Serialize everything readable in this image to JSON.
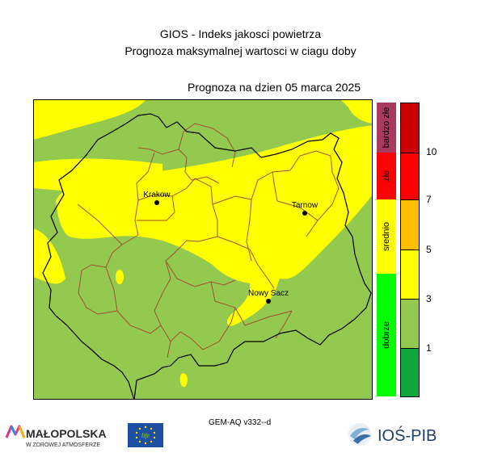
{
  "title": {
    "line1": "GIOS - Indeks jakosci powietrza",
    "line2": "Prognoza maksymalnej wartosci w ciagu doby"
  },
  "forecast_date": "Prognoza na dzien  05 marca 2025",
  "cities": [
    "Krakow",
    "Tarnow",
    "Nowy Sacz"
  ],
  "category_bar": [
    {
      "label": "bardzo złe",
      "color": "#a83a60"
    },
    {
      "label": "złe",
      "color": "#ff0000"
    },
    {
      "label": "srednio",
      "color": "#ffff00"
    },
    {
      "label": "dobrze",
      "color": "#00ff00"
    }
  ],
  "scale": {
    "colors_top_to_bottom": [
      "#cc0000",
      "#ff0000",
      "#ffbf00",
      "#ffff00",
      "#92c94e",
      "#10a83c"
    ],
    "tick_labels": [
      "10",
      "7",
      "5",
      "3",
      "1"
    ]
  },
  "map_colors": {
    "base": "#92c94e",
    "moderate": "#ffff00"
  },
  "model_label": "GEM-AQ v332--d",
  "logos": {
    "malopolska_name": "MAŁOPOLSKA",
    "malopolska_tagline": "W ZDROWEJ ATMOSFERZE",
    "ios_name": "IOŚ-PIB",
    "eu_mark": "life"
  }
}
